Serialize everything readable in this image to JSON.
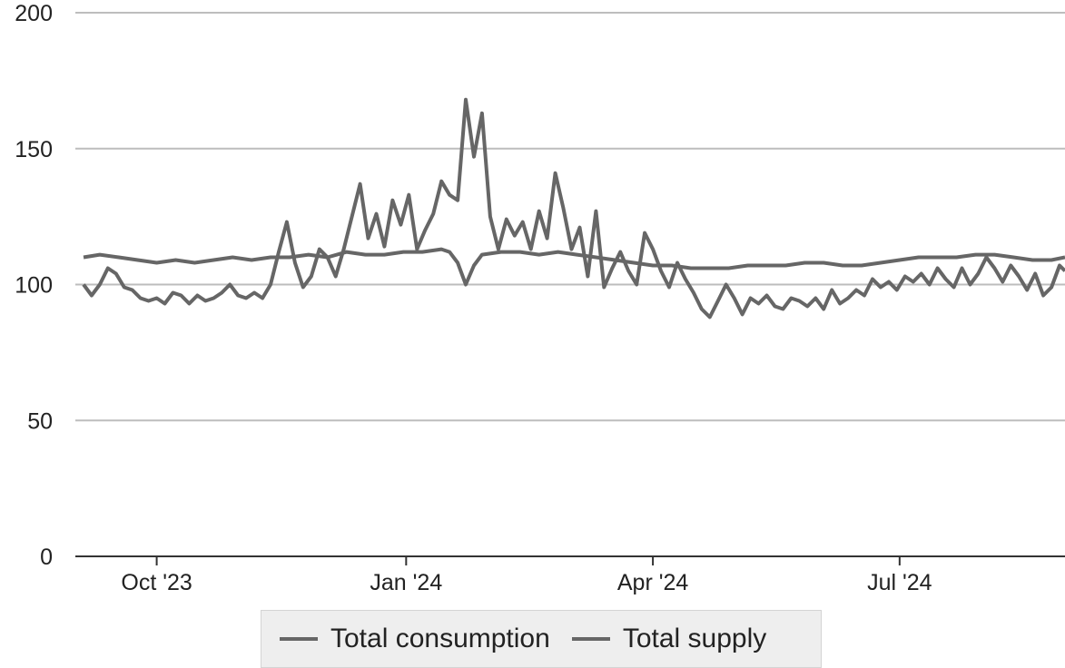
{
  "chart_data": {
    "type": "line",
    "title": "",
    "xlabel": "",
    "ylabel": "",
    "ylim": [
      0,
      200
    ],
    "y_ticks": [
      0,
      50,
      100,
      150,
      200
    ],
    "x_range": [
      "2023-09-01",
      "2024-08-31"
    ],
    "x_ticks": [
      {
        "date": "2023-10-01",
        "label": "Oct '23"
      },
      {
        "date": "2024-01-01",
        "label": "Jan '24"
      },
      {
        "date": "2024-04-01",
        "label": "Apr '24"
      },
      {
        "date": "2024-07-01",
        "label": "Jul '24"
      }
    ],
    "grid": true,
    "legend": "bottom",
    "series": [
      {
        "name": "Total consumption",
        "color": "#666666",
        "points": [
          [
            "2023-09-04",
            100
          ],
          [
            "2023-09-07",
            96
          ],
          [
            "2023-09-10",
            100
          ],
          [
            "2023-09-13",
            106
          ],
          [
            "2023-09-16",
            104
          ],
          [
            "2023-09-19",
            99
          ],
          [
            "2023-09-22",
            98
          ],
          [
            "2023-09-25",
            95
          ],
          [
            "2023-09-28",
            94
          ],
          [
            "2023-10-01",
            95
          ],
          [
            "2023-10-04",
            93
          ],
          [
            "2023-10-07",
            97
          ],
          [
            "2023-10-10",
            96
          ],
          [
            "2023-10-13",
            93
          ],
          [
            "2023-10-16",
            96
          ],
          [
            "2023-10-19",
            94
          ],
          [
            "2023-10-22",
            95
          ],
          [
            "2023-10-25",
            97
          ],
          [
            "2023-10-28",
            100
          ],
          [
            "2023-10-31",
            96
          ],
          [
            "2023-11-03",
            95
          ],
          [
            "2023-11-06",
            97
          ],
          [
            "2023-11-09",
            95
          ],
          [
            "2023-11-12",
            100
          ],
          [
            "2023-11-15",
            112
          ],
          [
            "2023-11-18",
            123
          ],
          [
            "2023-11-21",
            108
          ],
          [
            "2023-11-24",
            99
          ],
          [
            "2023-11-27",
            103
          ],
          [
            "2023-11-30",
            113
          ],
          [
            "2023-12-03",
            110
          ],
          [
            "2023-12-06",
            103
          ],
          [
            "2023-12-09",
            113
          ],
          [
            "2023-12-12",
            125
          ],
          [
            "2023-12-15",
            137
          ],
          [
            "2023-12-18",
            117
          ],
          [
            "2023-12-21",
            126
          ],
          [
            "2023-12-24",
            114
          ],
          [
            "2023-12-27",
            131
          ],
          [
            "2023-12-30",
            122
          ],
          [
            "2024-01-02",
            133
          ],
          [
            "2024-01-05",
            113
          ],
          [
            "2024-01-08",
            120
          ],
          [
            "2024-01-11",
            126
          ],
          [
            "2024-01-14",
            138
          ],
          [
            "2024-01-17",
            133
          ],
          [
            "2024-01-20",
            131
          ],
          [
            "2024-01-23",
            168
          ],
          [
            "2024-01-26",
            147
          ],
          [
            "2024-01-29",
            163
          ],
          [
            "2024-02-01",
            125
          ],
          [
            "2024-02-04",
            113
          ],
          [
            "2024-02-07",
            124
          ],
          [
            "2024-02-10",
            118
          ],
          [
            "2024-02-13",
            123
          ],
          [
            "2024-02-16",
            113
          ],
          [
            "2024-02-19",
            127
          ],
          [
            "2024-02-22",
            117
          ],
          [
            "2024-02-25",
            141
          ],
          [
            "2024-02-28",
            128
          ],
          [
            "2024-03-02",
            113
          ],
          [
            "2024-03-05",
            121
          ],
          [
            "2024-03-08",
            103
          ],
          [
            "2024-03-11",
            127
          ],
          [
            "2024-03-14",
            99
          ],
          [
            "2024-03-17",
            106
          ],
          [
            "2024-03-20",
            112
          ],
          [
            "2024-03-23",
            105
          ],
          [
            "2024-03-26",
            100
          ],
          [
            "2024-03-29",
            119
          ],
          [
            "2024-04-01",
            113
          ],
          [
            "2024-04-04",
            105
          ],
          [
            "2024-04-07",
            99
          ],
          [
            "2024-04-10",
            108
          ],
          [
            "2024-04-13",
            102
          ],
          [
            "2024-04-16",
            97
          ],
          [
            "2024-04-19",
            91
          ],
          [
            "2024-04-22",
            88
          ],
          [
            "2024-04-25",
            94
          ],
          [
            "2024-04-28",
            100
          ],
          [
            "2024-05-01",
            95
          ],
          [
            "2024-05-04",
            89
          ],
          [
            "2024-05-07",
            95
          ],
          [
            "2024-05-10",
            93
          ],
          [
            "2024-05-13",
            96
          ],
          [
            "2024-05-16",
            92
          ],
          [
            "2024-05-19",
            91
          ],
          [
            "2024-05-22",
            95
          ],
          [
            "2024-05-25",
            94
          ],
          [
            "2024-05-28",
            92
          ],
          [
            "2024-05-31",
            95
          ],
          [
            "2024-06-03",
            91
          ],
          [
            "2024-06-06",
            98
          ],
          [
            "2024-06-09",
            93
          ],
          [
            "2024-06-12",
            95
          ],
          [
            "2024-06-15",
            98
          ],
          [
            "2024-06-18",
            96
          ],
          [
            "2024-06-21",
            102
          ],
          [
            "2024-06-24",
            99
          ],
          [
            "2024-06-27",
            101
          ],
          [
            "2024-06-30",
            98
          ],
          [
            "2024-07-03",
            103
          ],
          [
            "2024-07-06",
            101
          ],
          [
            "2024-07-09",
            104
          ],
          [
            "2024-07-12",
            100
          ],
          [
            "2024-07-15",
            106
          ],
          [
            "2024-07-18",
            102
          ],
          [
            "2024-07-21",
            99
          ],
          [
            "2024-07-24",
            106
          ],
          [
            "2024-07-27",
            100
          ],
          [
            "2024-07-30",
            104
          ],
          [
            "2024-08-02",
            110
          ],
          [
            "2024-08-05",
            106
          ],
          [
            "2024-08-08",
            101
          ],
          [
            "2024-08-11",
            107
          ],
          [
            "2024-08-14",
            103
          ],
          [
            "2024-08-17",
            98
          ],
          [
            "2024-08-20",
            104
          ],
          [
            "2024-08-23",
            96
          ],
          [
            "2024-08-26",
            99
          ],
          [
            "2024-08-29",
            107
          ],
          [
            "2024-08-31",
            105
          ]
        ]
      },
      {
        "name": "Total supply",
        "color": "#666666",
        "points": [
          [
            "2023-09-04",
            110
          ],
          [
            "2023-09-10",
            111
          ],
          [
            "2023-09-17",
            110
          ],
          [
            "2023-09-24",
            109
          ],
          [
            "2023-10-01",
            108
          ],
          [
            "2023-10-08",
            109
          ],
          [
            "2023-10-15",
            108
          ],
          [
            "2023-10-22",
            109
          ],
          [
            "2023-10-29",
            110
          ],
          [
            "2023-11-05",
            109
          ],
          [
            "2023-11-12",
            110
          ],
          [
            "2023-11-19",
            110
          ],
          [
            "2023-11-26",
            111
          ],
          [
            "2023-12-03",
            110
          ],
          [
            "2023-12-10",
            112
          ],
          [
            "2023-12-17",
            111
          ],
          [
            "2023-12-24",
            111
          ],
          [
            "2023-12-31",
            112
          ],
          [
            "2024-01-07",
            112
          ],
          [
            "2024-01-14",
            113
          ],
          [
            "2024-01-17",
            112
          ],
          [
            "2024-01-20",
            108
          ],
          [
            "2024-01-23",
            100
          ],
          [
            "2024-01-26",
            107
          ],
          [
            "2024-01-29",
            111
          ],
          [
            "2024-02-05",
            112
          ],
          [
            "2024-02-12",
            112
          ],
          [
            "2024-02-19",
            111
          ],
          [
            "2024-02-26",
            112
          ],
          [
            "2024-03-04",
            111
          ],
          [
            "2024-03-11",
            110
          ],
          [
            "2024-03-18",
            109
          ],
          [
            "2024-03-25",
            108
          ],
          [
            "2024-04-01",
            107
          ],
          [
            "2024-04-08",
            107
          ],
          [
            "2024-04-15",
            106
          ],
          [
            "2024-04-22",
            106
          ],
          [
            "2024-04-29",
            106
          ],
          [
            "2024-05-06",
            107
          ],
          [
            "2024-05-13",
            107
          ],
          [
            "2024-05-20",
            107
          ],
          [
            "2024-05-27",
            108
          ],
          [
            "2024-06-03",
            108
          ],
          [
            "2024-06-10",
            107
          ],
          [
            "2024-06-17",
            107
          ],
          [
            "2024-06-24",
            108
          ],
          [
            "2024-07-01",
            109
          ],
          [
            "2024-07-08",
            110
          ],
          [
            "2024-07-15",
            110
          ],
          [
            "2024-07-22",
            110
          ],
          [
            "2024-07-29",
            111
          ],
          [
            "2024-08-05",
            111
          ],
          [
            "2024-08-12",
            110
          ],
          [
            "2024-08-19",
            109
          ],
          [
            "2024-08-26",
            109
          ],
          [
            "2024-08-31",
            110
          ]
        ]
      }
    ]
  }
}
